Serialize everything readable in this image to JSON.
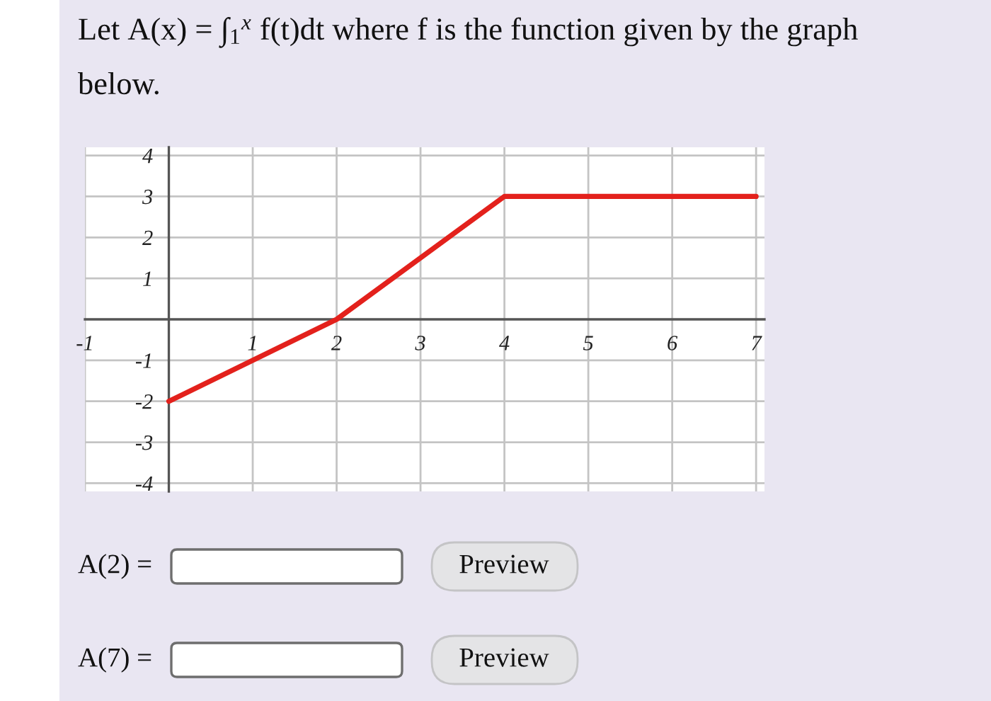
{
  "chart_data": {
    "type": "line",
    "title": "Let A(x) = ∫$_{1}$$^{x}$ f(t)dt where f is the function given by the graph below.",
    "x": [
      0,
      2,
      4,
      7
    ],
    "series": [
      {
        "color": "#e3211c",
        "values": [
          -2,
          0,
          3,
          3
        ]
      }
    ],
    "xlim": [
      -1,
      7.1
    ],
    "xticks": [
      -1,
      1,
      2,
      3,
      4,
      5,
      6,
      7
    ],
    "ylim": [
      -4.2,
      4.2
    ],
    "yticks": [
      -4,
      -3,
      -2,
      -1,
      1,
      2,
      3,
      4
    ],
    "grid": true,
    "annotations": [
      "A(2) =",
      "Preview",
      "A(7) =",
      "Preview"
    ]
  }
}
